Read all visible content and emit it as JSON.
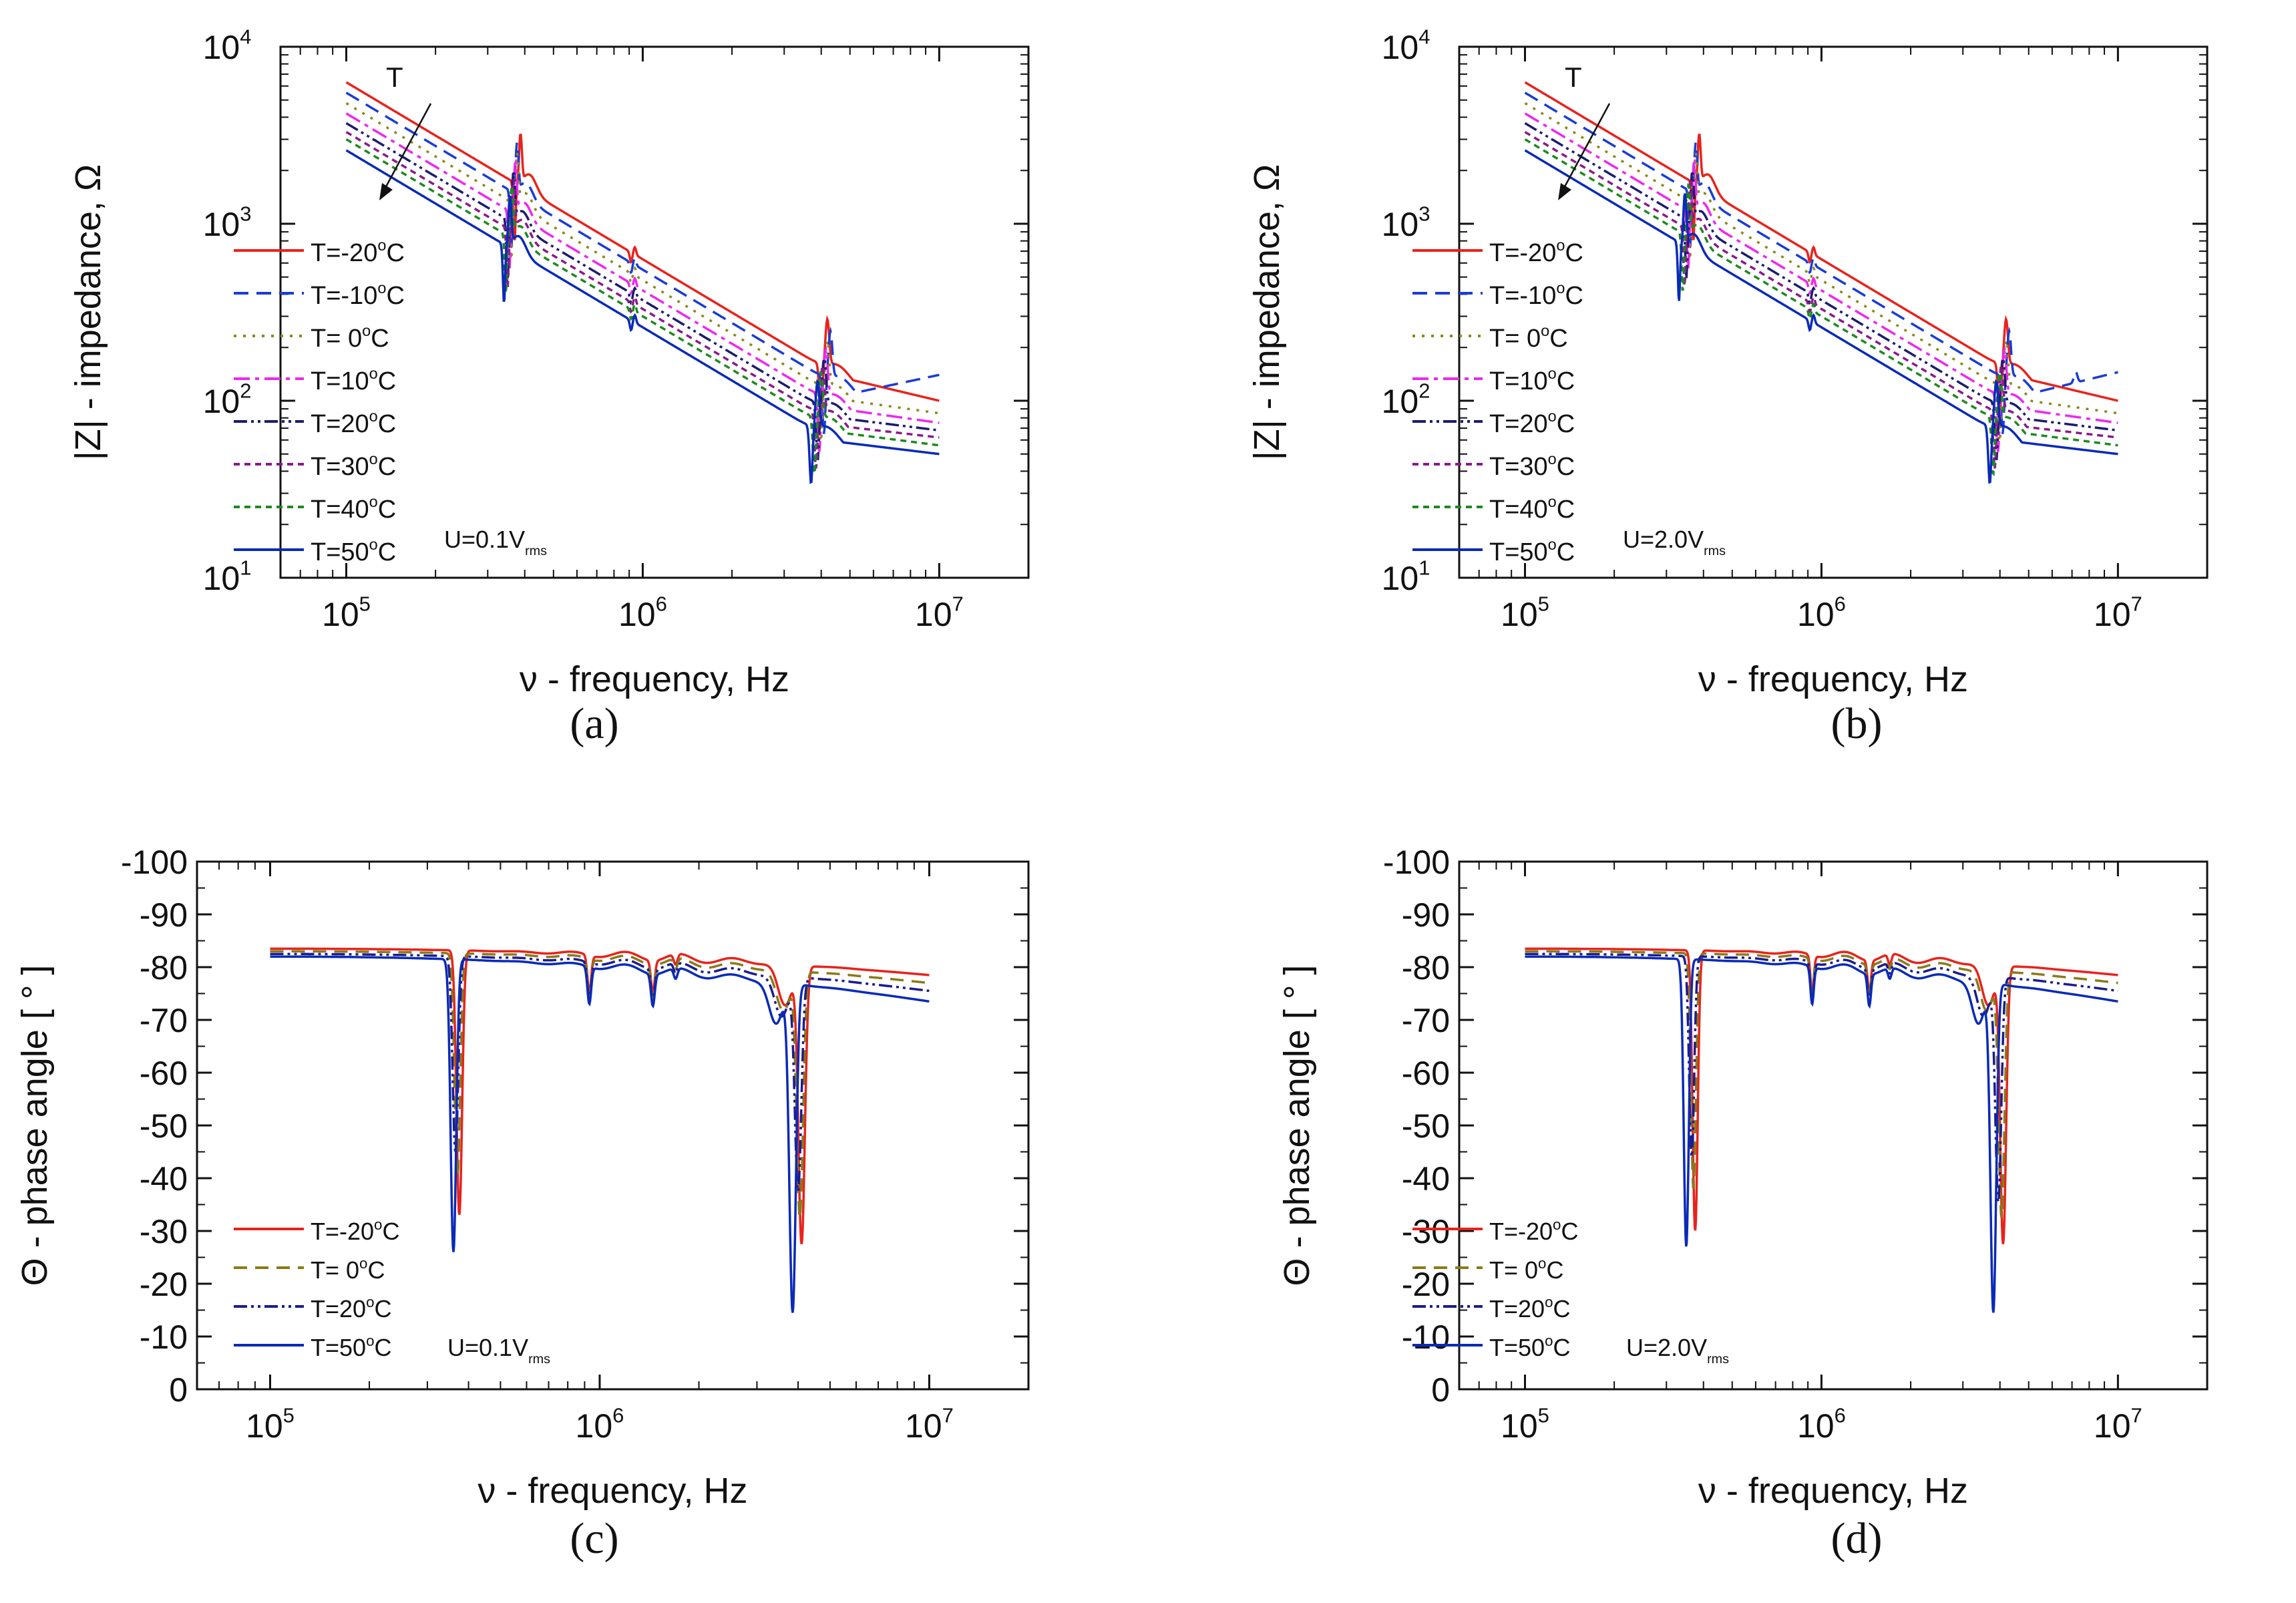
{
  "figure": {
    "panels": [
      {
        "id": "a",
        "label": "(a)"
      },
      {
        "id": "b",
        "label": "(b)"
      },
      {
        "id": "c",
        "label": "(c)"
      },
      {
        "id": "d",
        "label": "(d)"
      }
    ]
  },
  "chart_data": [
    {
      "panel": "(a)",
      "type": "line",
      "xlabel": "ν - frequency, Hz",
      "ylabel": "|Z| - impedance, Ω",
      "xscale": "log",
      "yscale": "log",
      "xlim": [
        60000,
        20000000
      ],
      "ylim": [
        10,
        10000
      ],
      "xticks": [
        "10^5",
        "10^6",
        "10^7"
      ],
      "yticks": [
        "10^1",
        "10^2",
        "10^3",
        "10^4"
      ],
      "legend_position": "left",
      "annotations": [
        "T",
        "U=0.1V_rms"
      ],
      "annotation_text": {
        "arrow_label": "T",
        "voltage_main": "U=0.1V",
        "voltage_sub": "rms"
      },
      "series": [
        {
          "name": "T=-20°C",
          "label": "T=-20",
          "unit": "C",
          "color": "#e8231c",
          "dash": "",
          "Z_at_1e5": 6300,
          "res1_f": 380000,
          "res2_f": 4100000,
          "end_f": 10000000,
          "end_Z": 100
        },
        {
          "name": "T=-10°C",
          "label": "T=-10",
          "unit": "C",
          "color": "#1a3cd6",
          "dash": "22,12",
          "Z_at_1e5": 5500,
          "res1_f": 370000,
          "res2_f": 4200000,
          "end_f": 10000000,
          "end_Z": 140
        },
        {
          "name": "T= 0°C",
          "label": "T= 0",
          "unit": "C",
          "color": "#8a8a1a",
          "dash": "4,10",
          "Z_at_1e5": 4800,
          "res1_f": 370000,
          "res2_f": 4100000,
          "end_f": 10000000,
          "end_Z": 85
        },
        {
          "name": "T=10°C",
          "label": "T=10",
          "unit": "C",
          "color": "#ee28ee",
          "dash": "24,8,6,8",
          "Z_at_1e5": 4200,
          "res1_f": 365000,
          "res2_f": 4050000,
          "end_f": 10000000,
          "end_Z": 75
        },
        {
          "name": "T=20°C",
          "label": "T=20",
          "unit": "C",
          "color": "#1c1c6e",
          "dash": "20,6,4,6,4,6",
          "Z_at_1e5": 3700,
          "res1_f": 360000,
          "res2_f": 4000000,
          "end_f": 10000000,
          "end_Z": 68
        },
        {
          "name": "T=30°C",
          "label": "T=30",
          "unit": "C",
          "color": "#8a1a8a",
          "dash": "9,7",
          "Z_at_1e5": 3300,
          "res1_f": 360000,
          "res2_f": 3950000,
          "end_f": 10000000,
          "end_Z": 62
        },
        {
          "name": "T=40°C",
          "label": "T=40",
          "unit": "C",
          "color": "#1e8a1e",
          "dash": "9,7",
          "Z_at_1e5": 3000,
          "res1_f": 355000,
          "res2_f": 3900000,
          "end_f": 10000000,
          "end_Z": 56
        },
        {
          "name": "T=50°C",
          "label": "T=50",
          "unit": "C",
          "color": "#0a2ab8",
          "dash": "",
          "Z_at_1e5": 2600,
          "res1_f": 350000,
          "res2_f": 3800000,
          "end_f": 10000000,
          "end_Z": 50
        }
      ]
    },
    {
      "panel": "(b)",
      "type": "line",
      "xlabel": "ν - frequency, Hz",
      "ylabel": "|Z| - impedance, Ω",
      "xscale": "log",
      "yscale": "log",
      "xlim": [
        60000,
        20000000
      ],
      "ylim": [
        10,
        10000
      ],
      "xticks": [
        "10^5",
        "10^6",
        "10^7"
      ],
      "yticks": [
        "10^1",
        "10^2",
        "10^3",
        "10^4"
      ],
      "legend_position": "left",
      "annotations": [
        "T",
        "U=2.0V_rms"
      ],
      "annotation_text": {
        "arrow_label": "T",
        "voltage_main": "U=2.0V",
        "voltage_sub": "rms"
      },
      "series": [
        {
          "name": "T=-20°C",
          "label": "T=-20",
          "unit": "C",
          "color": "#e8231c",
          "dash": "",
          "Z_at_1e5": 6300,
          "res1_f": 380000,
          "res2_f": 4100000,
          "end_f": 10000000,
          "end_Z": 100
        },
        {
          "name": "T=-10°C",
          "label": "T=-10",
          "unit": "C",
          "color": "#1a3cd6",
          "dash": "22,12",
          "Z_at_1e5": 5500,
          "res1_f": 370000,
          "res2_f": 4200000,
          "end_f": 10000000,
          "end_Z": 145
        },
        {
          "name": "T= 0°C",
          "label": "T= 0",
          "unit": "C",
          "color": "#8a8a1a",
          "dash": "4,10",
          "Z_at_1e5": 4800,
          "res1_f": 370000,
          "res2_f": 4100000,
          "end_f": 10000000,
          "end_Z": 85
        },
        {
          "name": "T=10°C",
          "label": "T=10",
          "unit": "C",
          "color": "#ee28ee",
          "dash": "24,8,6,8",
          "Z_at_1e5": 4200,
          "res1_f": 365000,
          "res2_f": 4050000,
          "end_f": 10000000,
          "end_Z": 75
        },
        {
          "name": "T=20°C",
          "label": "T=20",
          "unit": "C",
          "color": "#1c1c6e",
          "dash": "20,6,4,6,4,6",
          "Z_at_1e5": 3700,
          "res1_f": 360000,
          "res2_f": 4000000,
          "end_f": 10000000,
          "end_Z": 68
        },
        {
          "name": "T=30°C",
          "label": "T=30",
          "unit": "C",
          "color": "#8a1a8a",
          "dash": "9,7",
          "Z_at_1e5": 3300,
          "res1_f": 355000,
          "res2_f": 3950000,
          "end_f": 10000000,
          "end_Z": 62
        },
        {
          "name": "T=40°C",
          "label": "T=40",
          "unit": "C",
          "color": "#1e8a1e",
          "dash": "9,7",
          "Z_at_1e5": 3000,
          "res1_f": 350000,
          "res2_f": 3900000,
          "end_f": 10000000,
          "end_Z": 56
        },
        {
          "name": "T=50°C",
          "label": "T=50",
          "unit": "C",
          "color": "#0a2ab8",
          "dash": "",
          "Z_at_1e5": 2600,
          "res1_f": 340000,
          "res2_f": 3800000,
          "end_f": 10000000,
          "end_Z": 50
        }
      ]
    },
    {
      "panel": "(c)",
      "type": "line",
      "xlabel": "ν - frequency, Hz",
      "ylabel": "Θ - phase angle   [ ° ]",
      "xscale": "log",
      "yscale": "linear",
      "xlim": [
        60000,
        20000000
      ],
      "ylim": [
        0,
        -100
      ],
      "xticks": [
        "10^5",
        "10^6",
        "10^7"
      ],
      "yticks": [
        "0",
        "-10",
        "-20",
        "-30",
        "-40",
        "-50",
        "-60",
        "-70",
        "-80",
        "-90",
        "-100"
      ],
      "legend_position": "bottom-left",
      "annotations": [
        "U=0.1V_rms"
      ],
      "annotation_text": {
        "voltage_main": "U=0.1V",
        "voltage_sub": "rms"
      },
      "series": [
        {
          "name": "T=-20°C",
          "label": "T=-20",
          "unit": "C",
          "color": "#e8231c",
          "dash": "",
          "theta_at_1e5": -83.5,
          "theta_end": -78.5,
          "dip1_f": 375000,
          "dip1_min": -33,
          "dip2_f": 4100000,
          "dip2_min": -28
        },
        {
          "name": "T= 0°C",
          "label": "T= 0",
          "unit": "C",
          "color": "#8a7a1a",
          "dash": "20,12",
          "theta_at_1e5": -83,
          "theta_end": -77,
          "dip1_f": 370000,
          "dip1_min": -40,
          "dip2_f": 4050000,
          "dip2_min": -33
        },
        {
          "name": "T=20°C",
          "label": "T=20",
          "unit": "C",
          "color": "#1c1c8e",
          "dash": "20,6,4,6,4,6",
          "theta_at_1e5": -82.5,
          "theta_end": -75.5,
          "dip1_f": 365000,
          "dip1_min": -45,
          "dip2_f": 4000000,
          "dip2_min": -38
        },
        {
          "name": "T=50°C",
          "label": "T=50",
          "unit": "C",
          "color": "#0a2ab8",
          "dash": "",
          "theta_at_1e5": -82,
          "theta_end": -73.5,
          "dip1_f": 360000,
          "dip1_min": -26,
          "dip2_f": 3850000,
          "dip2_min": -15
        }
      ]
    },
    {
      "panel": "(d)",
      "type": "line",
      "xlabel": "ν - frequency, Hz",
      "ylabel": "Θ - phase angle   [ ° ]",
      "xscale": "log",
      "yscale": "linear",
      "xlim": [
        60000,
        20000000
      ],
      "ylim": [
        0,
        -100
      ],
      "xticks": [
        "10^5",
        "10^6",
        "10^7"
      ],
      "yticks": [
        "0",
        "-10",
        "-20",
        "-30",
        "-40",
        "-50",
        "-60",
        "-70",
        "-80",
        "-90",
        "-100"
      ],
      "legend_position": "bottom-left",
      "annotations": [
        "U=2.0V_rms"
      ],
      "annotation_text": {
        "voltage_main": "U=2.0V",
        "voltage_sub": "rms"
      },
      "series": [
        {
          "name": "T=-20°C",
          "label": "T=-20",
          "unit": "C",
          "color": "#e8231c",
          "dash": "",
          "theta_at_1e5": -83.5,
          "theta_end": -78.5,
          "dip1_f": 375000,
          "dip1_min": -30,
          "dip2_f": 4100000,
          "dip2_min": -28
        },
        {
          "name": "T= 0°C",
          "label": "T= 0",
          "unit": "C",
          "color": "#8a7a1a",
          "dash": "20,12",
          "theta_at_1e5": -83,
          "theta_end": -77,
          "dip1_f": 370000,
          "dip1_min": -38,
          "dip2_f": 4050000,
          "dip2_min": -33
        },
        {
          "name": "T=20°C",
          "label": "T=20",
          "unit": "C",
          "color": "#1c1c8e",
          "dash": "20,6,4,6,4,6",
          "theta_at_1e5": -82.5,
          "theta_end": -75.5,
          "dip1_f": 365000,
          "dip1_min": -44,
          "dip2_f": 3950000,
          "dip2_min": -36
        },
        {
          "name": "T=50°C",
          "label": "T=50",
          "unit": "C",
          "color": "#0a2ab8",
          "dash": "",
          "theta_at_1e5": -82,
          "theta_end": -73.5,
          "dip1_f": 350000,
          "dip1_min": -27,
          "dip2_f": 3800000,
          "dip2_min": -15
        }
      ]
    }
  ]
}
